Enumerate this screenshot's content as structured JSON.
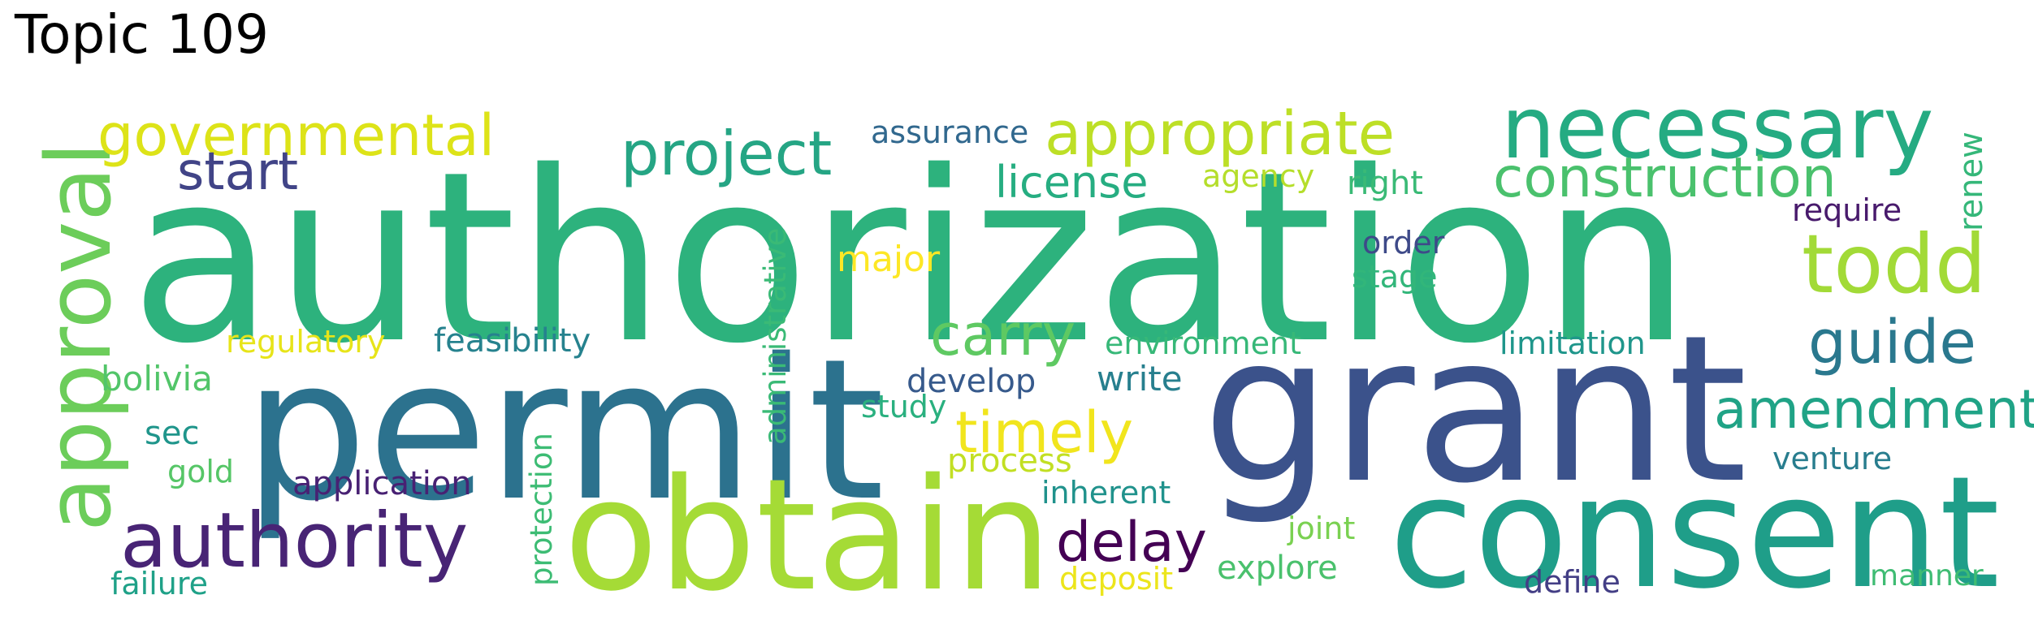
{
  "title": "Topic 109",
  "words": [
    {
      "text": "authorization",
      "color": "#2db27d"
    },
    {
      "text": "permit",
      "color": "#2c728e"
    },
    {
      "text": "grant",
      "color": "#3b528b"
    },
    {
      "text": "obtain",
      "color": "#a5db36"
    },
    {
      "text": "consent",
      "color": "#1f9e89"
    },
    {
      "text": "approval",
      "color": "#6ccd5a"
    },
    {
      "text": "necessary",
      "color": "#25ab82"
    },
    {
      "text": "governmental",
      "color": "#dde318"
    },
    {
      "text": "appropriate",
      "color": "#bddf26"
    },
    {
      "text": "authority",
      "color": "#482475"
    },
    {
      "text": "project",
      "color": "#25a584"
    },
    {
      "text": "construction",
      "color": "#4ac16d"
    },
    {
      "text": "todd",
      "color": "#a2da37"
    },
    {
      "text": "start",
      "color": "#414487"
    },
    {
      "text": "guide",
      "color": "#2a788e"
    },
    {
      "text": "amendment",
      "color": "#20a386"
    },
    {
      "text": "carry",
      "color": "#5ec962"
    },
    {
      "text": "timely",
      "color": "#f1e51d"
    },
    {
      "text": "delay",
      "color": "#440154"
    },
    {
      "text": "license",
      "color": "#26ad81"
    },
    {
      "text": "assurance",
      "color": "#31688e"
    },
    {
      "text": "agency",
      "color": "#b5de2b"
    },
    {
      "text": "right",
      "color": "#3aba76"
    },
    {
      "text": "require",
      "color": "#481a6c"
    },
    {
      "text": "renew",
      "color": "#35b779"
    },
    {
      "text": "administrative",
      "color": "#3aba76"
    },
    {
      "text": "major",
      "color": "#fde725"
    },
    {
      "text": "order",
      "color": "#3e4a89"
    },
    {
      "text": "stage",
      "color": "#32b67a"
    },
    {
      "text": "regulatory",
      "color": "#e7e419"
    },
    {
      "text": "feasibility",
      "color": "#26828e"
    },
    {
      "text": "environment",
      "color": "#37b878"
    },
    {
      "text": "limitation",
      "color": "#1f968b"
    },
    {
      "text": "bolivia",
      "color": "#52c569"
    },
    {
      "text": "develop",
      "color": "#375a8c"
    },
    {
      "text": "write",
      "color": "#277f8e"
    },
    {
      "text": "study",
      "color": "#2ab07f"
    },
    {
      "text": "sec",
      "color": "#1f958b"
    },
    {
      "text": "protection",
      "color": "#3dbc74"
    },
    {
      "text": "process",
      "color": "#c2df23"
    },
    {
      "text": "venture",
      "color": "#287d8e"
    },
    {
      "text": "gold",
      "color": "#56c667"
    },
    {
      "text": "application",
      "color": "#482173"
    },
    {
      "text": "inherent",
      "color": "#20928c"
    },
    {
      "text": "joint",
      "color": "#7ad151"
    },
    {
      "text": "explore",
      "color": "#4ac16d"
    },
    {
      "text": "deposit",
      "color": "#ece51b"
    },
    {
      "text": "define",
      "color": "#433e85"
    },
    {
      "text": "manner",
      "color": "#3fbc73"
    },
    {
      "text": "failure",
      "color": "#1fa188"
    }
  ]
}
